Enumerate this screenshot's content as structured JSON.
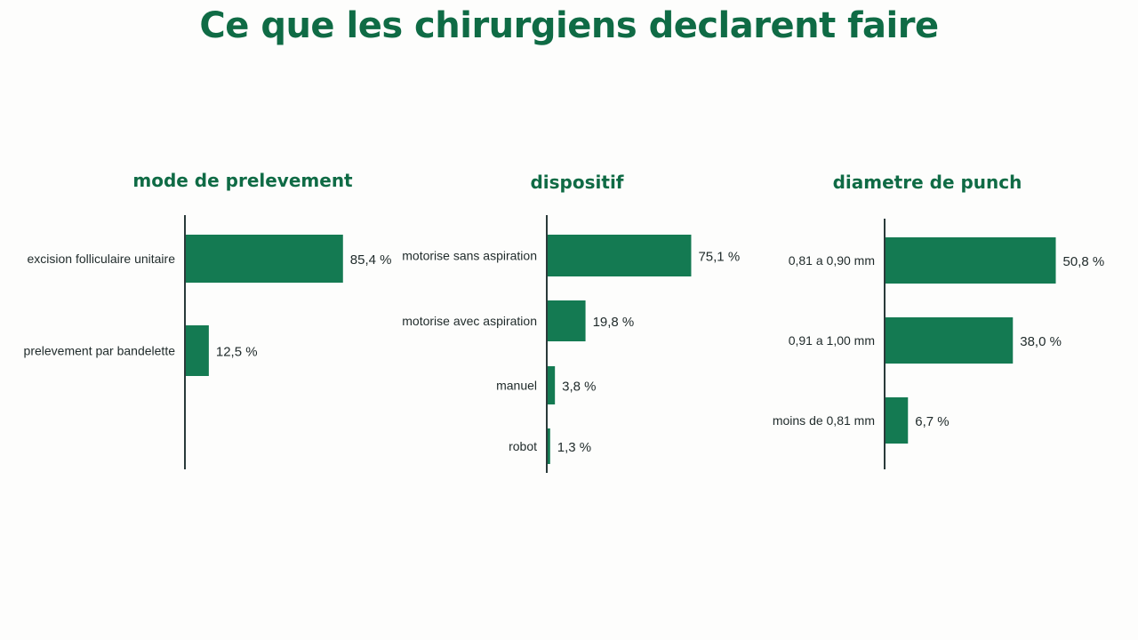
{
  "title": "Ce que les chirurgiens declarent faire",
  "colors": {
    "bar": "#147a52",
    "title": "#0f6b45",
    "axis": "#2a3a3a",
    "text": "#1f2a2a"
  },
  "chart_data": [
    {
      "type": "bar",
      "orientation": "horizontal",
      "title": "mode de prelevement",
      "categories": [
        "excision folliculaire unitaire",
        "prelevement par bandelette"
      ],
      "values": [
        85.4,
        12.5
      ],
      "value_labels": [
        "85,4 %",
        "12,5 %"
      ],
      "unit": "%",
      "xlim": [
        0,
        100
      ],
      "grid": false
    },
    {
      "type": "bar",
      "orientation": "horizontal",
      "title": "dispositif",
      "categories": [
        "motorise sans aspiration",
        "motorise avec aspiration",
        "manuel",
        "robot"
      ],
      "values": [
        75.1,
        19.8,
        3.8,
        1.3
      ],
      "value_labels": [
        "75,1 %",
        "19,8 %",
        "3,8 %",
        "1,3 %"
      ],
      "unit": "%",
      "xlim": [
        0,
        100
      ],
      "grid": false
    },
    {
      "type": "bar",
      "orientation": "horizontal",
      "title": "diametre de punch",
      "categories": [
        "0,81 a 0,90 mm",
        "0,91 a 1,00 mm",
        "moins de 0,81 mm"
      ],
      "values": [
        50.8,
        38.0,
        6.7
      ],
      "value_labels": [
        "50,8 %",
        "38,0 %",
        "6,7 %"
      ],
      "unit": "%",
      "xlim": [
        0,
        100
      ],
      "grid": false
    }
  ]
}
